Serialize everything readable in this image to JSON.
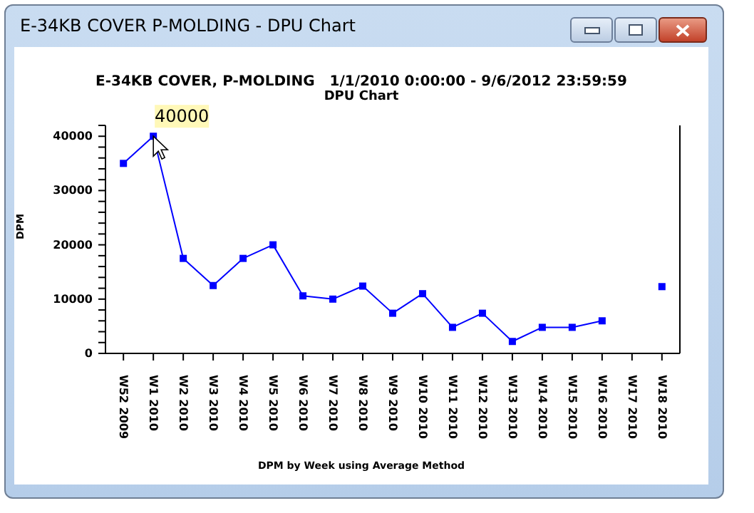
{
  "chart_data": {
    "type": "line",
    "title": "E-34KB COVER, P-MOLDING   1/1/2010 0:00:00 - 9/6/2012 23:59:59",
    "subtitle": "DPU Chart",
    "xlabel": "DPM by Week using Average Method",
    "ylabel": "DPM",
    "categories": [
      "W52 2009",
      "W1 2010",
      "W2 2010",
      "W3 2010",
      "W4 2010",
      "W5 2010",
      "W6 2010",
      "W7 2010",
      "W8 2010",
      "W9 2010",
      "W10 2010",
      "W11 2010",
      "W12 2010",
      "W13 2010",
      "W14 2010",
      "W15 2010",
      "W16 2010",
      "W17 2010",
      "W18 2010"
    ],
    "series": [
      {
        "color": "#0000ff",
        "values": [
          35000,
          40000,
          17500,
          12500,
          17500,
          20000,
          10600,
          10000,
          12400,
          7400,
          11000,
          4800,
          7400,
          2200,
          4800,
          4800,
          6000,
          null,
          12300
        ]
      }
    ],
    "ylim": [
      0,
      42000
    ],
    "yticks": [
      0,
      {
        "value": 2000,
        "label": null
      },
      {
        "value": 4000,
        "label": null
      },
      {
        "value": 6000,
        "label": null
      },
      {
        "value": 8000,
        "label": null
      },
      10000,
      {
        "value": 12000,
        "label": null
      },
      {
        "value": 14000,
        "label": null
      },
      {
        "value": 16000,
        "label": null
      },
      {
        "value": 18000,
        "label": null
      },
      20000,
      {
        "value": 22000,
        "label": null
      },
      {
        "value": 24000,
        "label": null
      },
      {
        "value": 26000,
        "label": null
      },
      {
        "value": 28000,
        "label": null
      },
      30000,
      {
        "value": 32000,
        "label": null
      },
      {
        "value": 34000,
        "label": null
      },
      {
        "value": 36000,
        "label": null
      },
      {
        "value": 38000,
        "label": null
      },
      40000,
      {
        "value": 42000,
        "label": null
      }
    ],
    "annotations": [
      "E-34KB COVER  P-MOLDING - DPU Chart",
      {
        "text": "40000",
        "x": "W1 2010",
        "y": 40000
      }
    ],
    "grid": false,
    "legend": false,
    "marker": "square",
    "line_style": "solid"
  }
}
